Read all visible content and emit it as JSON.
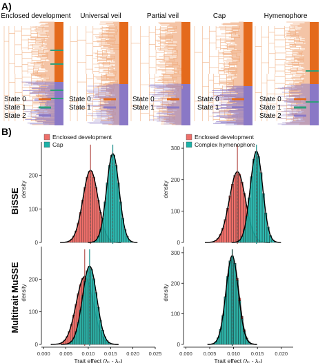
{
  "figure": {
    "panel_a_label": "A)",
    "panel_b_label": "B)",
    "row_labels": [
      "BiSSE",
      "Multitrait MuSSE"
    ],
    "colors": {
      "orange": "#e46a1c",
      "green": "#2e9e7a",
      "purple": "#8a78c6",
      "red_fill": "#ee6f6a",
      "teal_fill": "#1cb2a8",
      "vline_dark": "#b5524d",
      "vline_teal": "#1b8f8a"
    }
  },
  "trees": [
    {
      "title": "Enclosed development",
      "states": [
        {
          "label": "State 0",
          "color": "#e46a1c"
        },
        {
          "label": "State 1",
          "color": "#2e9e7a"
        },
        {
          "label": "State 2",
          "color": "#8a78c6"
        }
      ]
    },
    {
      "title": "Universal veil",
      "states": [
        {
          "label": "State 0",
          "color": "#e46a1c"
        },
        {
          "label": "State 1",
          "color": "#8a78c6"
        }
      ]
    },
    {
      "title": "Partial veil",
      "states": [
        {
          "label": "State 0",
          "color": "#e46a1c"
        },
        {
          "label": "State 1",
          "color": "#8a78c6"
        }
      ]
    },
    {
      "title": "Cap",
      "states": [
        {
          "label": "State 0",
          "color": "#e46a1c"
        },
        {
          "label": "State 1",
          "color": "#8a78c6"
        }
      ]
    },
    {
      "title": "Hymenophore",
      "states": [
        {
          "label": "State 0",
          "color": "#e46a1c"
        },
        {
          "label": "State 1",
          "color": "#2e9e7a"
        },
        {
          "label": "State 2",
          "color": "#8a78c6"
        }
      ]
    }
  ],
  "chart_data": [
    {
      "type": "histogram",
      "row": "BiSSE",
      "legend": [
        "Enclosed development",
        "Cap"
      ],
      "xlabel": "",
      "ylabel": "density",
      "xlim": [
        -0.0005,
        0.025
      ],
      "ylim": [
        0,
        300
      ],
      "yticks": [
        0,
        100,
        200
      ],
      "series": [
        {
          "name": "Enclosed development",
          "color": "#ee6f6a",
          "mean": 0.0105,
          "sd": 0.0017,
          "peak": 215
        },
        {
          "name": "Cap",
          "color": "#1cb2a8",
          "mean": 0.0155,
          "sd": 0.0014,
          "peak": 265
        }
      ]
    },
    {
      "type": "histogram",
      "row": "BiSSE",
      "legend": [
        "Enclosed development",
        "Complex hymenophore"
      ],
      "xlabel": "",
      "ylabel": "density",
      "xlim": [
        -0.0005,
        0.0225
      ],
      "ylim": [
        0,
        320
      ],
      "yticks": [
        0,
        100,
        200,
        300
      ],
      "series": [
        {
          "name": "Enclosed development",
          "color": "#ee6f6a",
          "mean": 0.0108,
          "sd": 0.0017,
          "peak": 225
        },
        {
          "name": "Complex hymenophore",
          "color": "#1cb2a8",
          "mean": 0.0148,
          "sd": 0.0013,
          "peak": 290
        }
      ]
    },
    {
      "type": "histogram",
      "row": "Multitrait MuSSE",
      "legend": [],
      "xlabel": "Trait effect (λ₁ - λ₀)",
      "ylabel": "density",
      "xlim": [
        -0.0005,
        0.025
      ],
      "xticks": [
        0.0,
        0.005,
        0.01,
        0.015,
        0.02,
        0.025
      ],
      "xticklabels": [
        "0.000",
        "0.005",
        "0.010",
        "0.015",
        "0.020",
        "0.025"
      ],
      "ylim": [
        0,
        300
      ],
      "yticks": [
        0,
        100,
        200
      ],
      "series": [
        {
          "name": "",
          "color": "#ee6f6a",
          "mean": 0.0092,
          "sd": 0.0019,
          "peak": 208
        },
        {
          "name": "",
          "color": "#1cb2a8",
          "mean": 0.0103,
          "sd": 0.0016,
          "peak": 240
        }
      ]
    },
    {
      "type": "histogram",
      "row": "Multitrait MuSSE",
      "legend": [],
      "xlabel": "Trait effect (λ₁ - λ₀)",
      "ylabel": "density",
      "xlim": [
        -0.0005,
        0.0225
      ],
      "xticks": [
        0.0,
        0.005,
        0.01,
        0.015,
        0.02
      ],
      "xticklabels": [
        "0.000",
        "0.005",
        "0.010",
        "0.015",
        "0.020"
      ],
      "ylim": [
        0,
        320
      ],
      "yticks": [
        0,
        100,
        200,
        300
      ],
      "series": [
        {
          "name": "",
          "color": "#ee6f6a",
          "mean": 0.0098,
          "sd": 0.0013,
          "peak": 282
        },
        {
          "name": "",
          "color": "#1cb2a8",
          "mean": 0.0097,
          "sd": 0.0013,
          "peak": 290
        }
      ]
    }
  ]
}
